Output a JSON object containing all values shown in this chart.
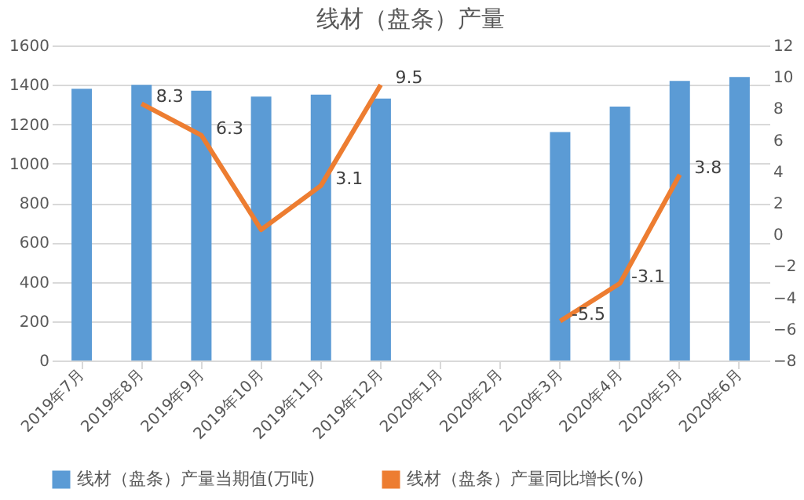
{
  "chart_data": {
    "type": "bar",
    "title": "线材（盘条）产量",
    "categories": [
      "2019年7月",
      "2019年8月",
      "2019年9月",
      "2019年10月",
      "2019年11月",
      "2019年12月",
      "2020年1月",
      "2020年2月",
      "2020年3月",
      "2020年4月",
      "2020年5月",
      "2020年6月"
    ],
    "series": [
      {
        "name": "线材（盘条）产量当期值(万吨)",
        "color": "#5b9bd5",
        "values": [
          1380,
          1400,
          1370,
          1340,
          1350,
          1330,
          null,
          null,
          1160,
          1290,
          1420,
          1440
        ]
      },
      {
        "name": "线材（盘条）产量同比增长(%)",
        "color": "#ed7d31",
        "type": "line",
        "axis": "y2",
        "values": [
          null,
          8.3,
          6.3,
          0.3,
          3.1,
          9.5,
          null,
          null,
          -5.5,
          -3.1,
          3.8,
          null
        ],
        "value_labels": [
          null,
          "8.3",
          "6.3",
          null,
          "3.1",
          "9.5",
          null,
          null,
          "-5.5",
          "-3.1",
          "3.8",
          null
        ]
      }
    ],
    "ylim": [
      0,
      1600
    ],
    "yticks": [
      0,
      200,
      400,
      600,
      800,
      1000,
      1200,
      1400,
      1600
    ],
    "y2lim": [
      -8,
      12
    ],
    "y2ticks": [
      -8,
      -6,
      -4,
      -2,
      0,
      2,
      4,
      6,
      8,
      10,
      12
    ],
    "grid": "y",
    "legend": "bottom"
  }
}
